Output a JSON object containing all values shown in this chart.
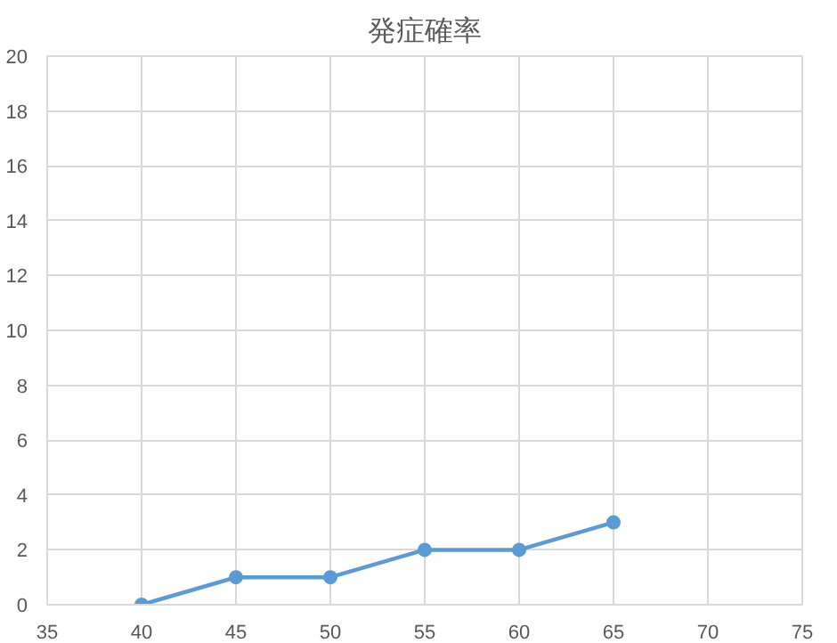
{
  "chart_data": {
    "type": "line",
    "title": "発症確率",
    "x": [
      40,
      45,
      50,
      55,
      60,
      65
    ],
    "series": [
      {
        "color": "#5b9bd5",
        "values": [
          0,
          1,
          1,
          2,
          2,
          3
        ]
      }
    ],
    "xlim": [
      35,
      75
    ],
    "xticks": [
      35,
      40,
      45,
      50,
      55,
      60,
      65,
      70,
      75
    ],
    "ylim": [
      0,
      20
    ],
    "yticks": [
      0,
      2,
      4,
      6,
      8,
      10,
      12,
      14,
      16,
      18,
      20
    ],
    "grid": true,
    "marker": "circle",
    "line_style": "solid"
  }
}
